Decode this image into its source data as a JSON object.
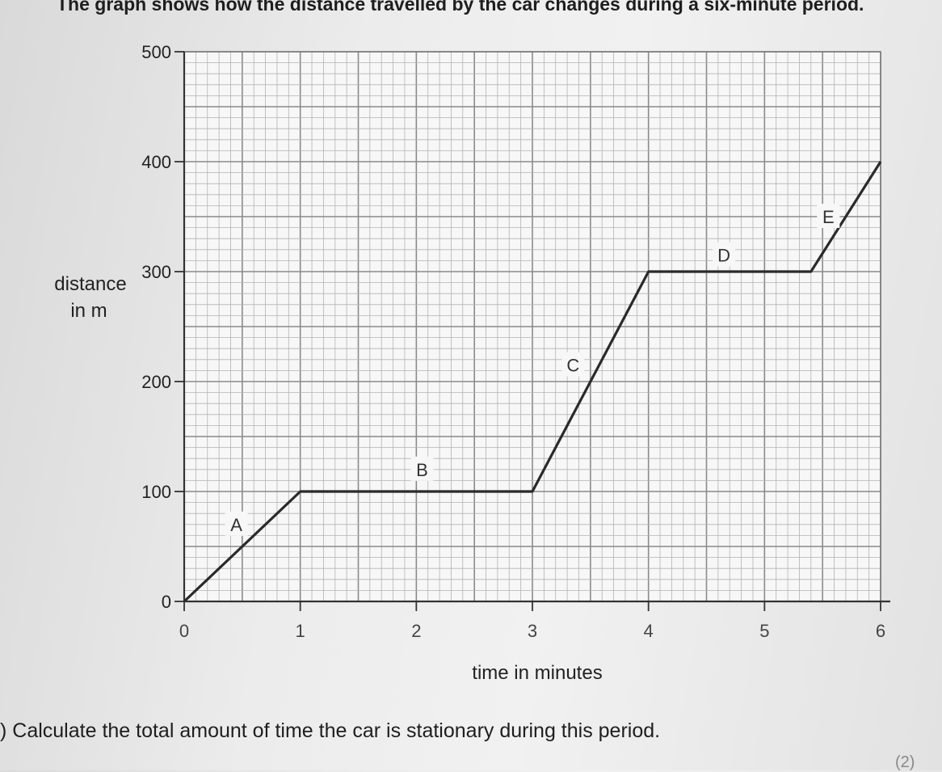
{
  "text": {
    "intro": "The graph shows how the distance travelled by the car changes during a six-minute period.",
    "question": ") Calculate the total amount of time the car is stationary during this period.",
    "marks": "(2)"
  },
  "chart_data": {
    "type": "line",
    "title": "",
    "xlabel": "time in minutes",
    "ylabel_lines": [
      "distance",
      "in m"
    ],
    "xlim": [
      0,
      6
    ],
    "ylim": [
      0,
      500
    ],
    "x_ticks": [
      0,
      1,
      2,
      3,
      4,
      5,
      6
    ],
    "y_ticks": [
      0,
      100,
      200,
      300,
      400,
      500
    ],
    "grid": true,
    "series": [
      {
        "x": [
          0,
          1,
          3,
          4,
          5.4,
          6
        ],
        "y": [
          0,
          100,
          100,
          300,
          300,
          400
        ]
      }
    ],
    "segment_labels": [
      {
        "text": "A",
        "x": 0.45,
        "y": 70
      },
      {
        "text": "B",
        "x": 2.05,
        "y": 120
      },
      {
        "text": "C",
        "x": 3.35,
        "y": 215
      },
      {
        "text": "D",
        "x": 4.65,
        "y": 315
      },
      {
        "text": "E",
        "x": 5.55,
        "y": 350
      }
    ]
  }
}
